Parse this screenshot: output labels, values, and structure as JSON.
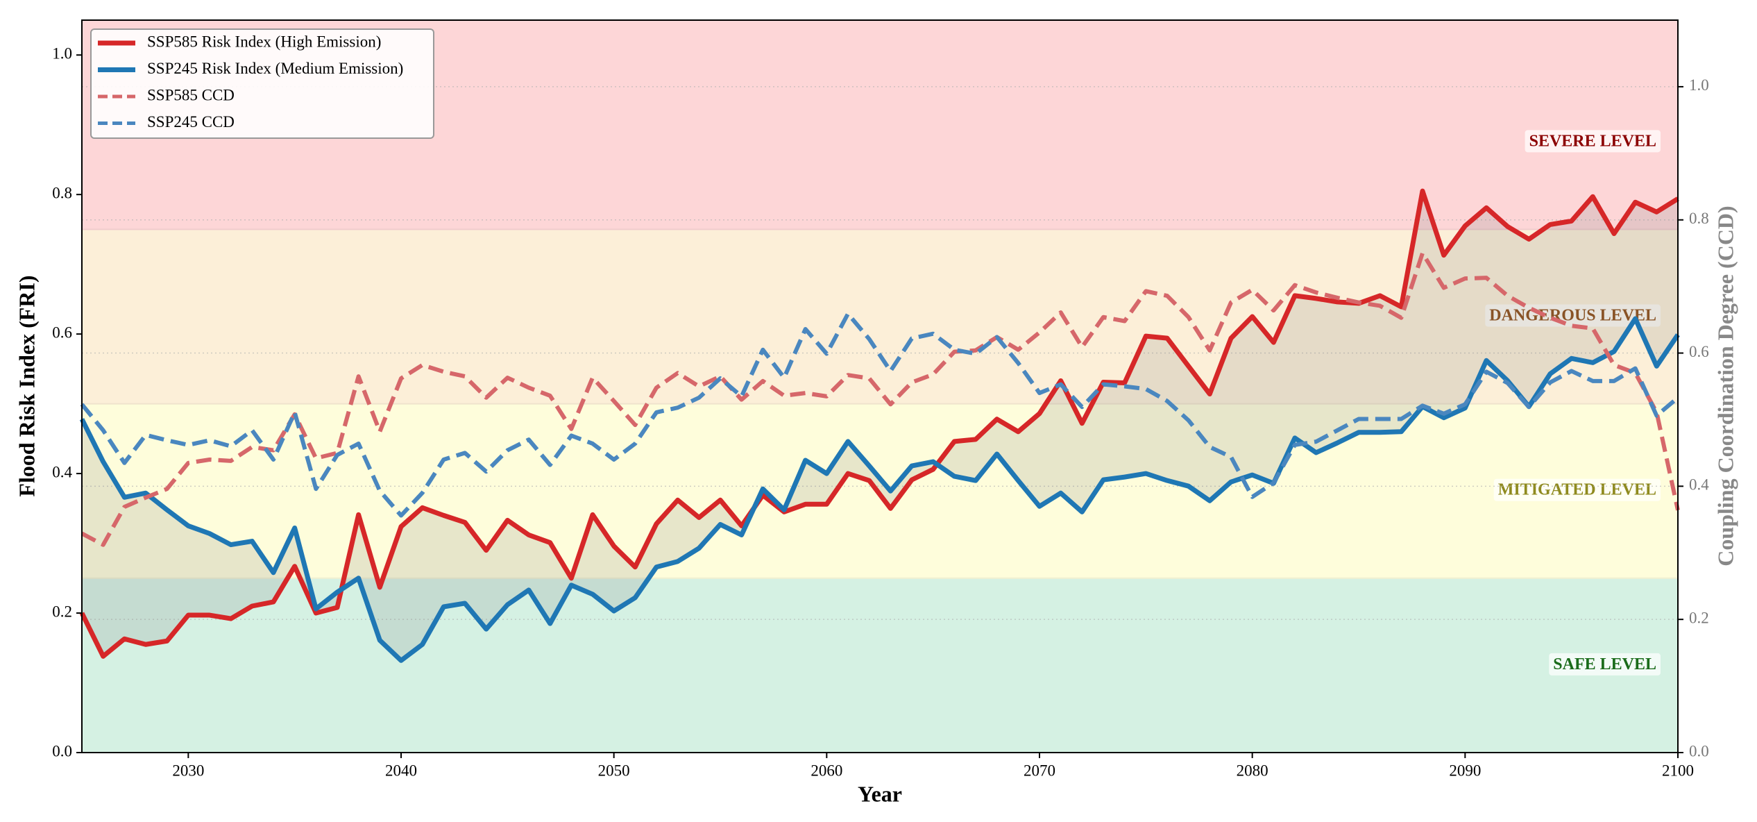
{
  "chart_data": {
    "type": "line",
    "xlabel": "Year",
    "ylabel": "Flood Risk Index (FRI)",
    "y2label": "Coupling Coordination Degree (CCD)",
    "xlim": [
      2025,
      2100
    ],
    "ylim": [
      0,
      1.05
    ],
    "y2lim": [
      0,
      1.1
    ],
    "xticks": [
      2030,
      2040,
      2050,
      2060,
      2070,
      2080,
      2090,
      2100
    ],
    "yticks": [
      {
        "value": 0,
        "label": "0.0"
      },
      0.2,
      0.4,
      0.6,
      0.8,
      {
        "value": 1,
        "label": "1.0"
      }
    ],
    "y2ticks": [
      {
        "value": 0,
        "label": "0.0"
      },
      0.2,
      0.4,
      0.6,
      0.8,
      {
        "value": 1,
        "label": "1.0"
      }
    ],
    "grid": true,
    "legend_loc": "upper left",
    "fill_between_color": "#808080",
    "bands": [
      {
        "name": "SAFE LEVEL",
        "range": [
          0,
          0.25
        ],
        "color": "#d5f1e3",
        "label_color": "#1a6b1a"
      },
      {
        "name": "MITIGATED LEVEL",
        "range": [
          0.25,
          0.5
        ],
        "color": "#fefddb",
        "label_color": "#8f8a1f"
      },
      {
        "name": "DANGEROUS LEVEL",
        "range": [
          0.5,
          0.75
        ],
        "color": "#fcefd8",
        "label_color": "#8b4a13"
      },
      {
        "name": "SEVERE LEVEL",
        "range": [
          0.75,
          1.05
        ],
        "color": "#fdd6d7",
        "label_color": "#8b0000"
      }
    ],
    "x": [
      2025,
      2026,
      2027,
      2028,
      2029,
      2030,
      2031,
      2032,
      2033,
      2034,
      2035,
      2036,
      2037,
      2038,
      2039,
      2040,
      2041,
      2042,
      2043,
      2044,
      2045,
      2046,
      2047,
      2048,
      2049,
      2050,
      2051,
      2052,
      2053,
      2054,
      2055,
      2056,
      2057,
      2058,
      2059,
      2060,
      2061,
      2062,
      2063,
      2064,
      2065,
      2066,
      2067,
      2068,
      2069,
      2070,
      2071,
      2072,
      2073,
      2074,
      2075,
      2076,
      2077,
      2078,
      2079,
      2080,
      2081,
      2082,
      2083,
      2084,
      2085,
      2086,
      2087,
      2088,
      2089,
      2090,
      2091,
      2092,
      2093,
      2094,
      2095,
      2096,
      2097,
      2098,
      2099,
      2100
    ],
    "series": [
      {
        "name": "SSP585 Risk Index (High Emission)",
        "color": "#d62728",
        "style": "solid",
        "axis": "y",
        "values": [
          0.2,
          0.138,
          0.163,
          0.155,
          0.16,
          0.197,
          0.197,
          0.192,
          0.21,
          0.216,
          0.267,
          0.2,
          0.208,
          0.341,
          0.237,
          0.324,
          0.351,
          0.34,
          0.33,
          0.29,
          0.333,
          0.312,
          0.301,
          0.25,
          0.341,
          0.296,
          0.266,
          0.328,
          0.362,
          0.337,
          0.362,
          0.325,
          0.369,
          0.345,
          0.356,
          0.356,
          0.4,
          0.39,
          0.35,
          0.391,
          0.406,
          0.446,
          0.449,
          0.478,
          0.46,
          0.486,
          0.533,
          0.472,
          0.531,
          0.53,
          0.597,
          0.594,
          0.554,
          0.514,
          0.594,
          0.625,
          0.588,
          0.655,
          0.651,
          0.646,
          0.644,
          0.655,
          0.639,
          0.805,
          0.713,
          0.755,
          0.781,
          0.754,
          0.736,
          0.757,
          0.762,
          0.797,
          0.744,
          0.789,
          0.775,
          0.794
        ]
      },
      {
        "name": "SSP245 Risk Index (Medium Emission)",
        "color": "#1f77b4",
        "style": "solid",
        "axis": "y",
        "values": [
          0.478,
          0.417,
          0.366,
          0.372,
          0.348,
          0.325,
          0.314,
          0.298,
          0.303,
          0.258,
          0.322,
          0.206,
          0.23,
          0.25,
          0.161,
          0.132,
          0.155,
          0.209,
          0.214,
          0.177,
          0.212,
          0.233,
          0.185,
          0.24,
          0.227,
          0.203,
          0.222,
          0.266,
          0.274,
          0.293,
          0.327,
          0.312,
          0.378,
          0.348,
          0.419,
          0.4,
          0.446,
          0.411,
          0.375,
          0.411,
          0.417,
          0.396,
          0.39,
          0.428,
          0.39,
          0.353,
          0.372,
          0.345,
          0.391,
          0.395,
          0.4,
          0.39,
          0.382,
          0.361,
          0.388,
          0.398,
          0.386,
          0.451,
          0.43,
          0.444,
          0.459,
          0.459,
          0.46,
          0.496,
          0.48,
          0.494,
          0.562,
          0.533,
          0.496,
          0.543,
          0.565,
          0.559,
          0.575,
          0.622,
          0.554,
          0.599
        ]
      },
      {
        "name": "SSP585 CCD",
        "color": "#d6676a",
        "style": "dashed",
        "axis": "y2",
        "values": [
          0.329,
          0.312,
          0.369,
          0.383,
          0.396,
          0.435,
          0.44,
          0.438,
          0.459,
          0.454,
          0.508,
          0.442,
          0.45,
          0.565,
          0.482,
          0.562,
          0.582,
          0.572,
          0.565,
          0.533,
          0.563,
          0.548,
          0.536,
          0.486,
          0.563,
          0.528,
          0.492,
          0.548,
          0.57,
          0.55,
          0.565,
          0.53,
          0.558,
          0.536,
          0.54,
          0.535,
          0.567,
          0.562,
          0.523,
          0.556,
          0.568,
          0.602,
          0.604,
          0.624,
          0.605,
          0.631,
          0.661,
          0.609,
          0.654,
          0.648,
          0.693,
          0.686,
          0.654,
          0.604,
          0.676,
          0.695,
          0.664,
          0.702,
          0.691,
          0.683,
          0.676,
          0.671,
          0.653,
          0.75,
          0.698,
          0.712,
          0.713,
          0.686,
          0.668,
          0.653,
          0.641,
          0.637,
          0.582,
          0.57,
          0.511,
          0.364
        ]
      },
      {
        "name": "SSP245 CCD",
        "color": "#4a87bf",
        "style": "dashed",
        "axis": "y2",
        "values": [
          0.523,
          0.484,
          0.435,
          0.477,
          0.469,
          0.462,
          0.469,
          0.46,
          0.484,
          0.44,
          0.511,
          0.396,
          0.447,
          0.464,
          0.393,
          0.356,
          0.39,
          0.44,
          0.45,
          0.422,
          0.454,
          0.47,
          0.432,
          0.476,
          0.464,
          0.44,
          0.464,
          0.511,
          0.518,
          0.533,
          0.562,
          0.535,
          0.605,
          0.563,
          0.636,
          0.599,
          0.659,
          0.621,
          0.573,
          0.622,
          0.629,
          0.605,
          0.599,
          0.624,
          0.585,
          0.54,
          0.553,
          0.519,
          0.553,
          0.55,
          0.546,
          0.528,
          0.499,
          0.459,
          0.444,
          0.384,
          0.405,
          0.462,
          0.467,
          0.484,
          0.501,
          0.501,
          0.501,
          0.521,
          0.509,
          0.523,
          0.572,
          0.555,
          0.519,
          0.556,
          0.573,
          0.558,
          0.558,
          0.577,
          0.506,
          0.533
        ]
      }
    ]
  }
}
